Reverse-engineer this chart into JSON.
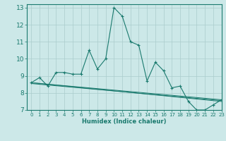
{
  "title": "",
  "xlabel": "Humidex (Indice chaleur)",
  "background_color": "#cce8e8",
  "grid_color": "#aacccc",
  "line_color": "#1a7a6e",
  "xlim": [
    -0.5,
    23
  ],
  "ylim": [
    7,
    13.2
  ],
  "yticks": [
    7,
    8,
    9,
    10,
    11,
    12,
    13
  ],
  "xticks": [
    0,
    1,
    2,
    3,
    4,
    5,
    6,
    7,
    8,
    9,
    10,
    11,
    12,
    13,
    14,
    15,
    16,
    17,
    18,
    19,
    20,
    21,
    22,
    23
  ],
  "series0_x": [
    0,
    1,
    2,
    3,
    4,
    5,
    6,
    7,
    8,
    9,
    10,
    11,
    12,
    13,
    14,
    15,
    16,
    17,
    18,
    19,
    20,
    21,
    22,
    23
  ],
  "series0_y": [
    8.6,
    8.9,
    8.4,
    9.2,
    9.2,
    9.1,
    9.1,
    10.5,
    9.4,
    10.0,
    13.0,
    12.5,
    11.0,
    10.8,
    8.7,
    9.8,
    9.3,
    8.3,
    8.4,
    7.5,
    7.0,
    7.0,
    7.3,
    7.6
  ],
  "series1_x": [
    0,
    23
  ],
  "series1_y": [
    8.6,
    7.6
  ],
  "series2_x": [
    0,
    23
  ],
  "series2_y": [
    8.6,
    7.5
  ],
  "series3_x": [
    0,
    23
  ],
  "series3_y": [
    8.55,
    7.55
  ]
}
